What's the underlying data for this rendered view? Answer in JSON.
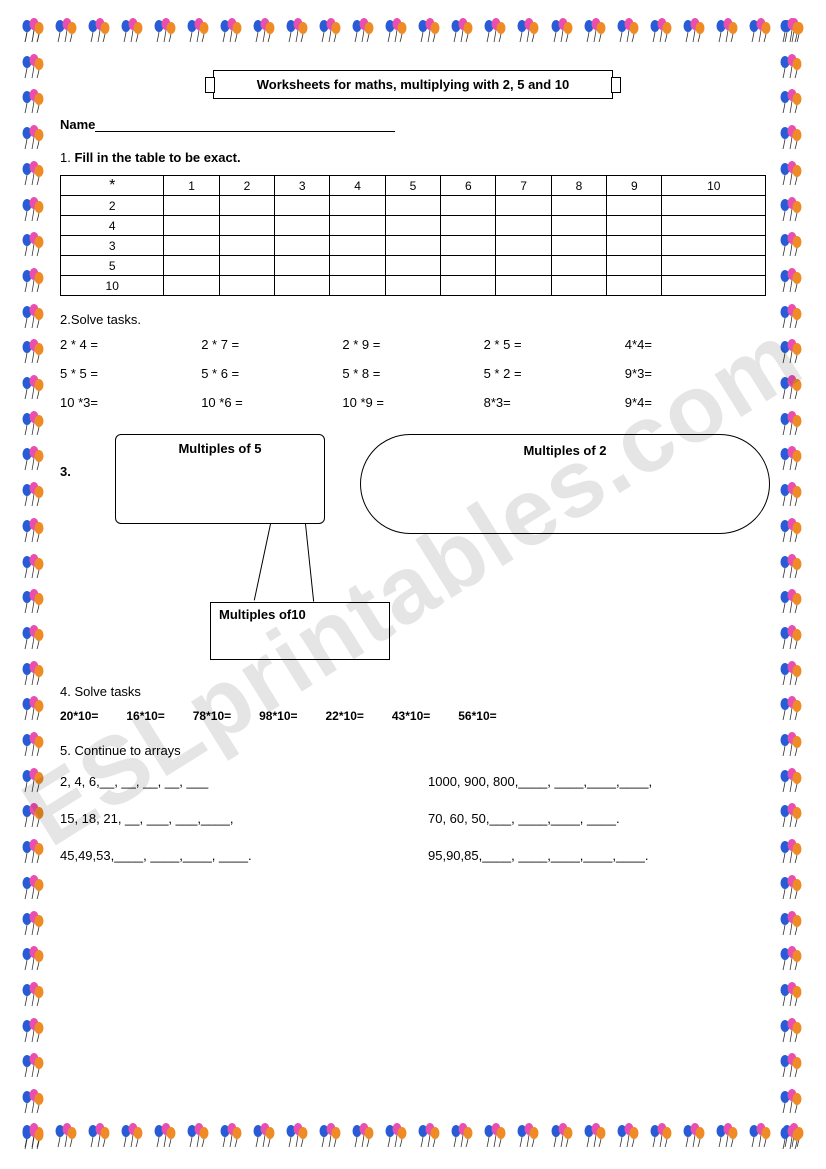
{
  "watermark": "ESLprintables.com",
  "title": "Worksheets for maths, multiplying with 2, 5 and 10",
  "name_label": "Name",
  "q1": {
    "num": "1.",
    "text": "Fill in the table to be exact."
  },
  "table": {
    "corner": "*",
    "cols": [
      "1",
      "2",
      "3",
      "4",
      "5",
      "6",
      "7",
      "8",
      "9",
      "10"
    ],
    "rows": [
      "2",
      "4",
      "3",
      "5",
      "10"
    ]
  },
  "q2": {
    "label": "2.Solve tasks."
  },
  "tasks2": [
    "2 * 4 =",
    "2 * 7 =",
    "2 * 9 =",
    "2 * 5 =",
    "4*4=",
    "5 * 5 =",
    "5 * 6 =",
    "5 * 8 =",
    "5 * 2 =",
    "9*3=",
    "10 *3=",
    "10 *6 =",
    "10 *9 =",
    "8*3=",
    "9*4="
  ],
  "q3": {
    "num": "3.",
    "m5": "Multiples of 5",
    "m2": "Multiples of 2",
    "m10": "Multiples of10"
  },
  "q4": {
    "label": "4. Solve tasks",
    "items": [
      "20*10=",
      "16*10=",
      "78*10=",
      "98*10=",
      "22*10=",
      "43*10=",
      "56*10="
    ]
  },
  "q5": {
    "label": "5. Continue to arrays",
    "rows": [
      [
        "2, 4, 6,__, __, __, __, ___",
        "1000, 900, 800,____, ____,____,____,"
      ],
      [
        "15, 18, 21, __, ___, ___,____,",
        "70, 60, 50,___, ____,____, ____."
      ],
      [
        "45,49,53,____, ____,____, ____.",
        "95,90,85,____, ____,____,____,____."
      ]
    ]
  },
  "balloon_colors": [
    "#2a5bd7",
    "#e94fb0",
    "#f08a24"
  ]
}
